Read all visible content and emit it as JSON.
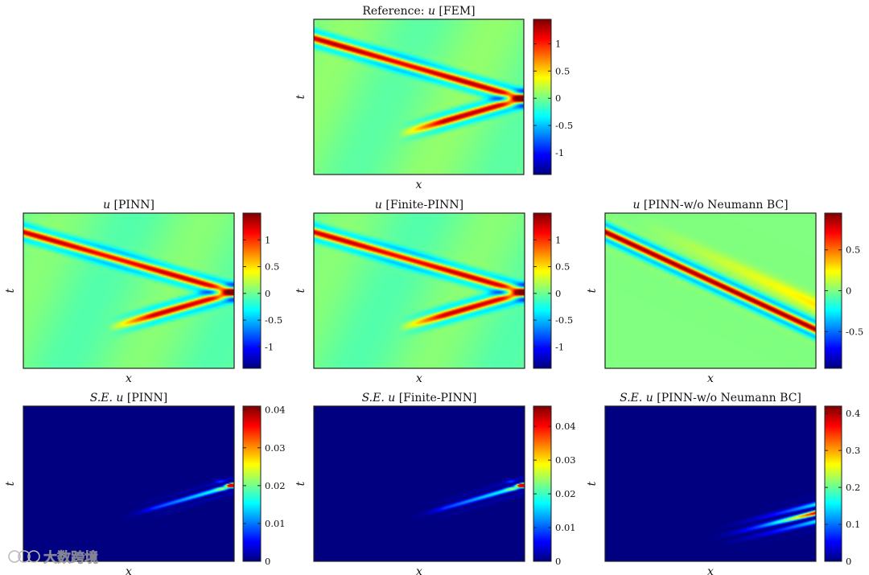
{
  "figure": {
    "watermark": "大数跨境"
  },
  "chart_data": [
    {
      "id": "ref",
      "type": "heatmap",
      "colormap": "jet",
      "pattern": "wave",
      "variant": "reflect",
      "title_prefix": "Reference: ",
      "title_var": "u",
      "title_suffix": " [FEM]",
      "xlabel": "x",
      "ylabel": "t",
      "clim": [
        -1.4,
        1.45
      ],
      "colorbar_ticks": [
        -1,
        -0.5,
        0,
        0.5,
        1
      ]
    },
    {
      "id": "pinn",
      "type": "heatmap",
      "colormap": "jet",
      "pattern": "wave",
      "variant": "reflect",
      "title_prefix": "",
      "title_var": "u",
      "title_suffix": " [PINN]",
      "xlabel": "x",
      "ylabel": "t",
      "clim": [
        -1.4,
        1.5
      ],
      "colorbar_ticks": [
        -1,
        -0.5,
        0,
        0.5,
        1
      ]
    },
    {
      "id": "finite",
      "type": "heatmap",
      "colormap": "jet",
      "pattern": "wave",
      "variant": "reflect",
      "title_prefix": "",
      "title_var": "u",
      "title_suffix": " [Finite-PINN]",
      "xlabel": "x",
      "ylabel": "t",
      "clim": [
        -1.4,
        1.5
      ],
      "colorbar_ticks": [
        -1,
        -0.5,
        0,
        0.5,
        1
      ]
    },
    {
      "id": "noneu",
      "type": "heatmap",
      "colormap": "jet",
      "pattern": "wave",
      "variant": "noreflect",
      "title_prefix": "",
      "title_var": "u",
      "title_suffix": " [PINN-w/o Neumann BC]",
      "xlabel": "x",
      "ylabel": "t",
      "clim": [
        -0.95,
        0.95
      ],
      "colorbar_ticks": [
        -0.5,
        0,
        0.5
      ]
    },
    {
      "id": "se_pinn",
      "type": "heatmap",
      "colormap": "jet",
      "pattern": "error",
      "variant": "reflect",
      "title_prefix": "S.E. ",
      "title_var": "u",
      "title_suffix": " [PINN]",
      "xlabel": "x",
      "ylabel": "t",
      "clim": [
        0,
        0.041
      ],
      "colorbar_ticks": [
        0,
        0.01,
        0.02,
        0.03,
        0.04
      ]
    },
    {
      "id": "se_finite",
      "type": "heatmap",
      "colormap": "jet",
      "pattern": "error",
      "variant": "reflect",
      "title_prefix": "S.E. ",
      "title_var": "u",
      "title_suffix": " [Finite-PINN]",
      "xlabel": "x",
      "ylabel": "t",
      "clim": [
        0,
        0.046
      ],
      "colorbar_ticks": [
        0,
        0.01,
        0.02,
        0.03,
        0.04
      ]
    },
    {
      "id": "se_noneu",
      "type": "heatmap",
      "colormap": "jet",
      "pattern": "error",
      "variant": "noreflect",
      "title_prefix": "S.E. ",
      "title_var": "u",
      "title_suffix": " [PINN-w/o Neumann BC]",
      "xlabel": "x",
      "ylabel": "t",
      "clim": [
        0,
        0.42
      ],
      "colorbar_ticks": [
        0,
        0.1,
        0.2,
        0.3,
        0.4
      ]
    }
  ]
}
